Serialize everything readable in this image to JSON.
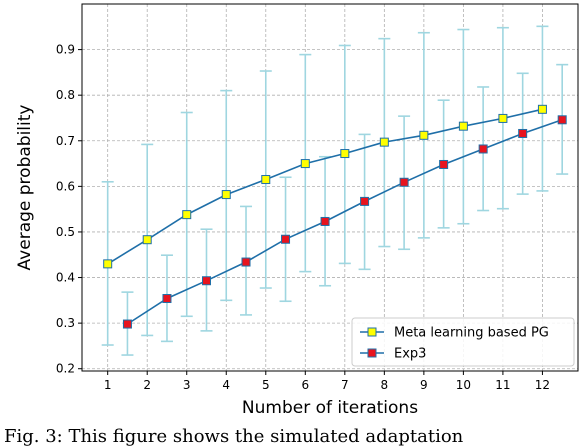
{
  "caption": "Fig. 3: This figure shows the simulated adaptation",
  "chart_data": {
    "type": "line",
    "xlabel": "Number of iterations",
    "ylabel": "Average probability",
    "xlim": [
      0.35,
      12.9
    ],
    "ylim": [
      0.195,
      1.0
    ],
    "xticks": [
      1,
      2,
      3,
      4,
      5,
      6,
      7,
      8,
      9,
      10,
      11,
      12
    ],
    "yticks": [
      0.2,
      0.3,
      0.4,
      0.5,
      0.6,
      0.7,
      0.8,
      0.9
    ],
    "grid": true,
    "grid_style": "dashed",
    "legend_position": "lower-right",
    "colors": {
      "line": "#1f6fa8",
      "errorbar": "#9fd6e0",
      "grid": "#b0b0b0"
    },
    "series": [
      {
        "name": "Meta learning based PG",
        "marker": "square",
        "marker_fill": "#ffff00",
        "marker_edge": "#1f6fa8",
        "x": [
          1,
          2,
          3,
          4,
          5,
          6,
          7,
          8,
          9,
          10,
          11,
          12
        ],
        "y": [
          0.43,
          0.483,
          0.538,
          0.582,
          0.615,
          0.65,
          0.672,
          0.697,
          0.712,
          0.732,
          0.749,
          0.769
        ],
        "err_low": [
          0.252,
          0.273,
          0.315,
          0.35,
          0.377,
          0.413,
          0.431,
          0.468,
          0.487,
          0.518,
          0.551,
          0.59
        ],
        "err_high": [
          0.61,
          0.692,
          0.762,
          0.81,
          0.853,
          0.889,
          0.909,
          0.924,
          0.937,
          0.944,
          0.948,
          0.951
        ]
      },
      {
        "name": "Exp3",
        "marker": "square",
        "marker_fill": "#e8141e",
        "marker_edge": "#1f6fa8",
        "x": [
          1.5,
          2.5,
          3.5,
          4.5,
          5.5,
          6.5,
          7.5,
          8.5,
          9.5,
          10.5,
          11.5,
          12.5
        ],
        "y": [
          0.298,
          0.354,
          0.393,
          0.434,
          0.484,
          0.523,
          0.567,
          0.609,
          0.648,
          0.682,
          0.716,
          0.746
        ],
        "err_low": [
          0.23,
          0.26,
          0.283,
          0.318,
          0.348,
          0.382,
          0.418,
          0.462,
          0.509,
          0.547,
          0.583,
          0.627
        ],
        "err_high": [
          0.368,
          0.449,
          0.506,
          0.556,
          0.62,
          0.665,
          0.714,
          0.754,
          0.789,
          0.818,
          0.848,
          0.867
        ]
      }
    ]
  }
}
